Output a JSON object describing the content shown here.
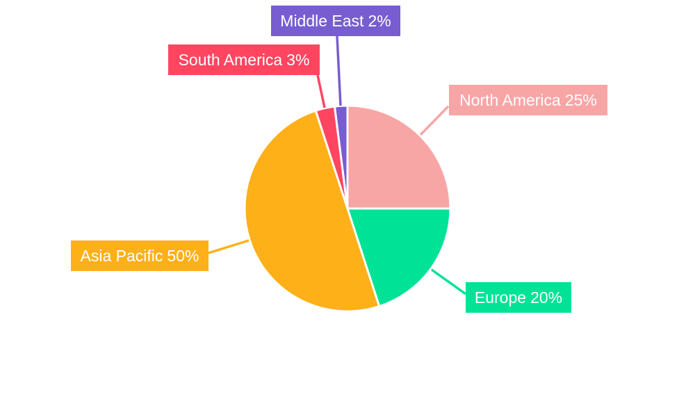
{
  "chart_data": {
    "type": "pie",
    "title": "",
    "start_angle": "12 o'clock",
    "direction": "clockwise",
    "slices": [
      {
        "label": "North America",
        "value": 25,
        "display": "25%",
        "color": "#F8A5A6"
      },
      {
        "label": "Europe",
        "value": 20,
        "display": "20%",
        "color": "#00E396"
      },
      {
        "label": "Asia Pacific",
        "value": 50,
        "display": "50%",
        "color": "#FEB019"
      },
      {
        "label": "South America",
        "value": 3,
        "display": "3%",
        "color": "#FF4560"
      },
      {
        "label": "Middle East",
        "value": 2,
        "display": "2%",
        "color": "#775DD0"
      }
    ]
  }
}
